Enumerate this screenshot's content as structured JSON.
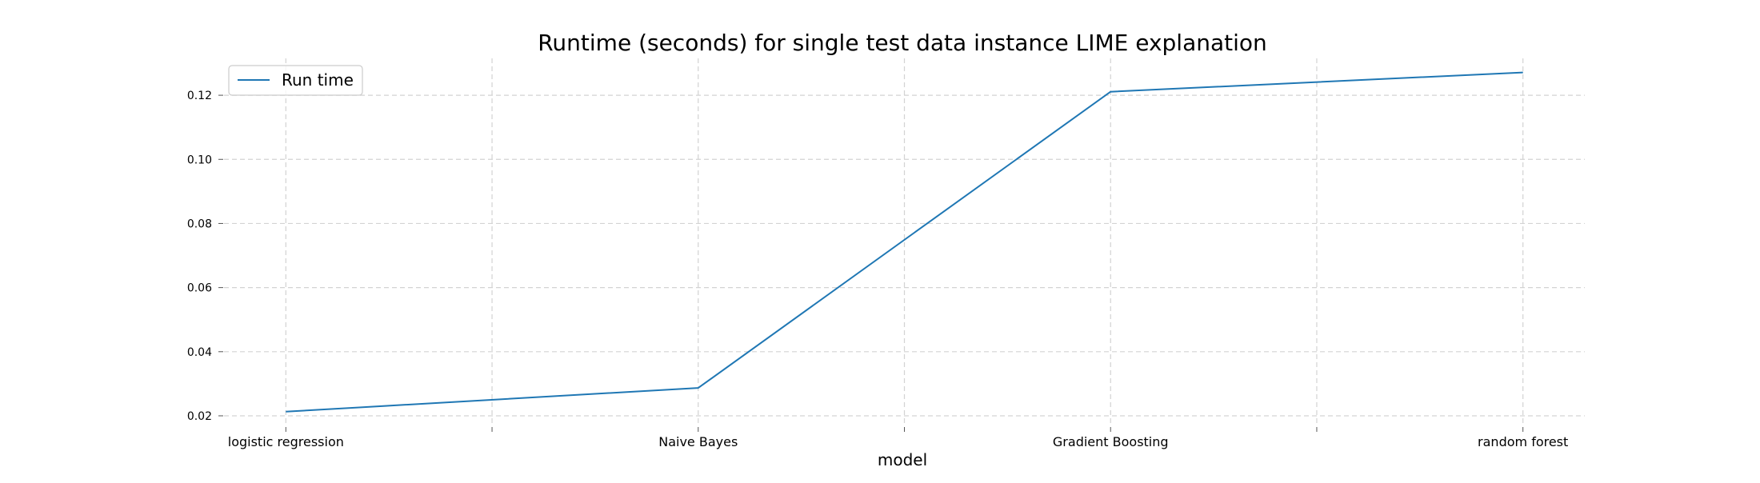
{
  "chart_data": {
    "type": "line",
    "title": "Runtime (seconds) for single test data instance LIME explanation",
    "xlabel": "model",
    "ylabel": "",
    "categories": [
      "logistic regression",
      "Naive Bayes",
      "Gradient Boosting",
      "random forest"
    ],
    "x_minor_ticks": [
      0.5,
      1.5,
      2.5
    ],
    "series": [
      {
        "name": "Run time",
        "color": "#1f77b4",
        "values": [
          0.0213,
          0.0287,
          0.1211,
          0.1271
        ]
      }
    ],
    "yticks": [
      0.02,
      0.04,
      0.06,
      0.08,
      0.1,
      0.12
    ],
    "ytick_labels": [
      "0.02",
      "0.04",
      "0.06",
      "0.08",
      "0.10",
      "0.12"
    ],
    "xlim": [
      -0.15,
      3.15
    ],
    "ylim": [
      0.017,
      0.1315
    ],
    "grid": true,
    "grid_color": "#d3d3d3",
    "legend_position": "upper left"
  }
}
